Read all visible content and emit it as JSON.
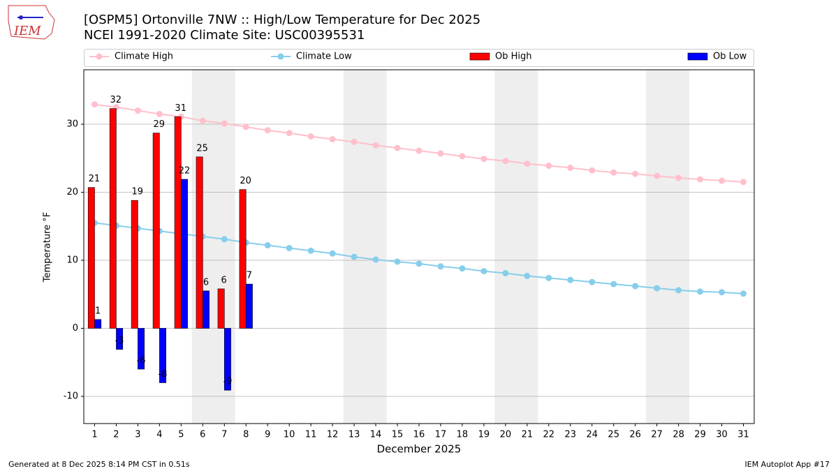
{
  "chart_data": {
    "type": "bar-line",
    "title": "[OSPM5] Ortonville 7NW :: High/Low Temperature for Dec 2025",
    "subtitle": "NCEI 1991-2020 Climate Site: USC00395531",
    "x_label": "December 2025",
    "y_label": "Temperature °F",
    "x": [
      1,
      2,
      3,
      4,
      5,
      6,
      7,
      8,
      9,
      10,
      11,
      12,
      13,
      14,
      15,
      16,
      17,
      18,
      19,
      20,
      21,
      22,
      23,
      24,
      25,
      26,
      27,
      28,
      29,
      30,
      31
    ],
    "xlim": [
      0.5,
      31.5
    ],
    "xticks": [
      1,
      2,
      3,
      4,
      5,
      6,
      7,
      8,
      9,
      10,
      11,
      12,
      13,
      14,
      15,
      16,
      17,
      18,
      19,
      20,
      21,
      22,
      23,
      24,
      25,
      26,
      27,
      28,
      29,
      30,
      31
    ],
    "ylim": [
      -14,
      38
    ],
    "yticks": [
      -10,
      0,
      10,
      20,
      30
    ],
    "grid": true,
    "shaded_spans": [
      [
        5.5,
        7.5
      ],
      [
        12.5,
        14.5
      ],
      [
        19.5,
        21.5
      ],
      [
        26.5,
        28.5
      ]
    ],
    "series": [
      {
        "name": "Climate High",
        "kind": "line",
        "color": "#ffc0cb",
        "values": [
          32.9,
          32.5,
          32.0,
          31.5,
          31.1,
          30.5,
          30.1,
          29.6,
          29.1,
          28.7,
          28.2,
          27.8,
          27.4,
          26.9,
          26.5,
          26.1,
          25.7,
          25.3,
          24.9,
          24.6,
          24.2,
          23.9,
          23.6,
          23.2,
          22.9,
          22.7,
          22.4,
          22.1,
          21.9,
          21.7,
          21.5
        ]
      },
      {
        "name": "Climate Low",
        "kind": "line",
        "color": "#87ceeb",
        "values": [
          15.5,
          15.1,
          14.7,
          14.3,
          13.9,
          13.5,
          13.1,
          12.6,
          12.2,
          11.8,
          11.4,
          11.0,
          10.5,
          10.1,
          9.8,
          9.5,
          9.1,
          8.8,
          8.4,
          8.1,
          7.7,
          7.4,
          7.1,
          6.8,
          6.5,
          6.2,
          5.9,
          5.6,
          5.4,
          5.3,
          5.1
        ]
      },
      {
        "name": "Ob High",
        "kind": "bar",
        "color": "#ff0000",
        "values": [
          20.7,
          32.3,
          18.8,
          28.7,
          31.1,
          25.2,
          5.8,
          20.4,
          null,
          null,
          null,
          null,
          null,
          null,
          null,
          null,
          null,
          null,
          null,
          null,
          null,
          null,
          null,
          null,
          null,
          null,
          null,
          null,
          null,
          null,
          null
        ],
        "value_labels": [
          "21",
          "32",
          "19",
          "29",
          "31",
          "25",
          "6",
          "20",
          null,
          null,
          null,
          null,
          null,
          null,
          null,
          null,
          null,
          null,
          null,
          null,
          null,
          null,
          null,
          null,
          null,
          null,
          null,
          null,
          null,
          null,
          null
        ]
      },
      {
        "name": "Ob Low",
        "kind": "bar",
        "color": "#0000ff",
        "values": [
          1.3,
          -3.1,
          -6.0,
          -8.0,
          21.9,
          5.5,
          -9.1,
          6.5,
          null,
          null,
          null,
          null,
          null,
          null,
          null,
          null,
          null,
          null,
          null,
          null,
          null,
          null,
          null,
          null,
          null,
          null,
          null,
          null,
          null,
          null,
          null
        ],
        "value_labels": [
          "1",
          "-3",
          "-6",
          "-8",
          "22",
          "6",
          "-9",
          "7",
          null,
          null,
          null,
          null,
          null,
          null,
          null,
          null,
          null,
          null,
          null,
          null,
          null,
          null,
          null,
          null,
          null,
          null,
          null,
          null,
          null,
          null,
          null
        ]
      }
    ],
    "footer_left": "Generated at 8 Dec 2025 8:14 PM CST in 0.51s",
    "footer_right": "IEM Autoplot App #17",
    "logo_text": "IEM"
  }
}
